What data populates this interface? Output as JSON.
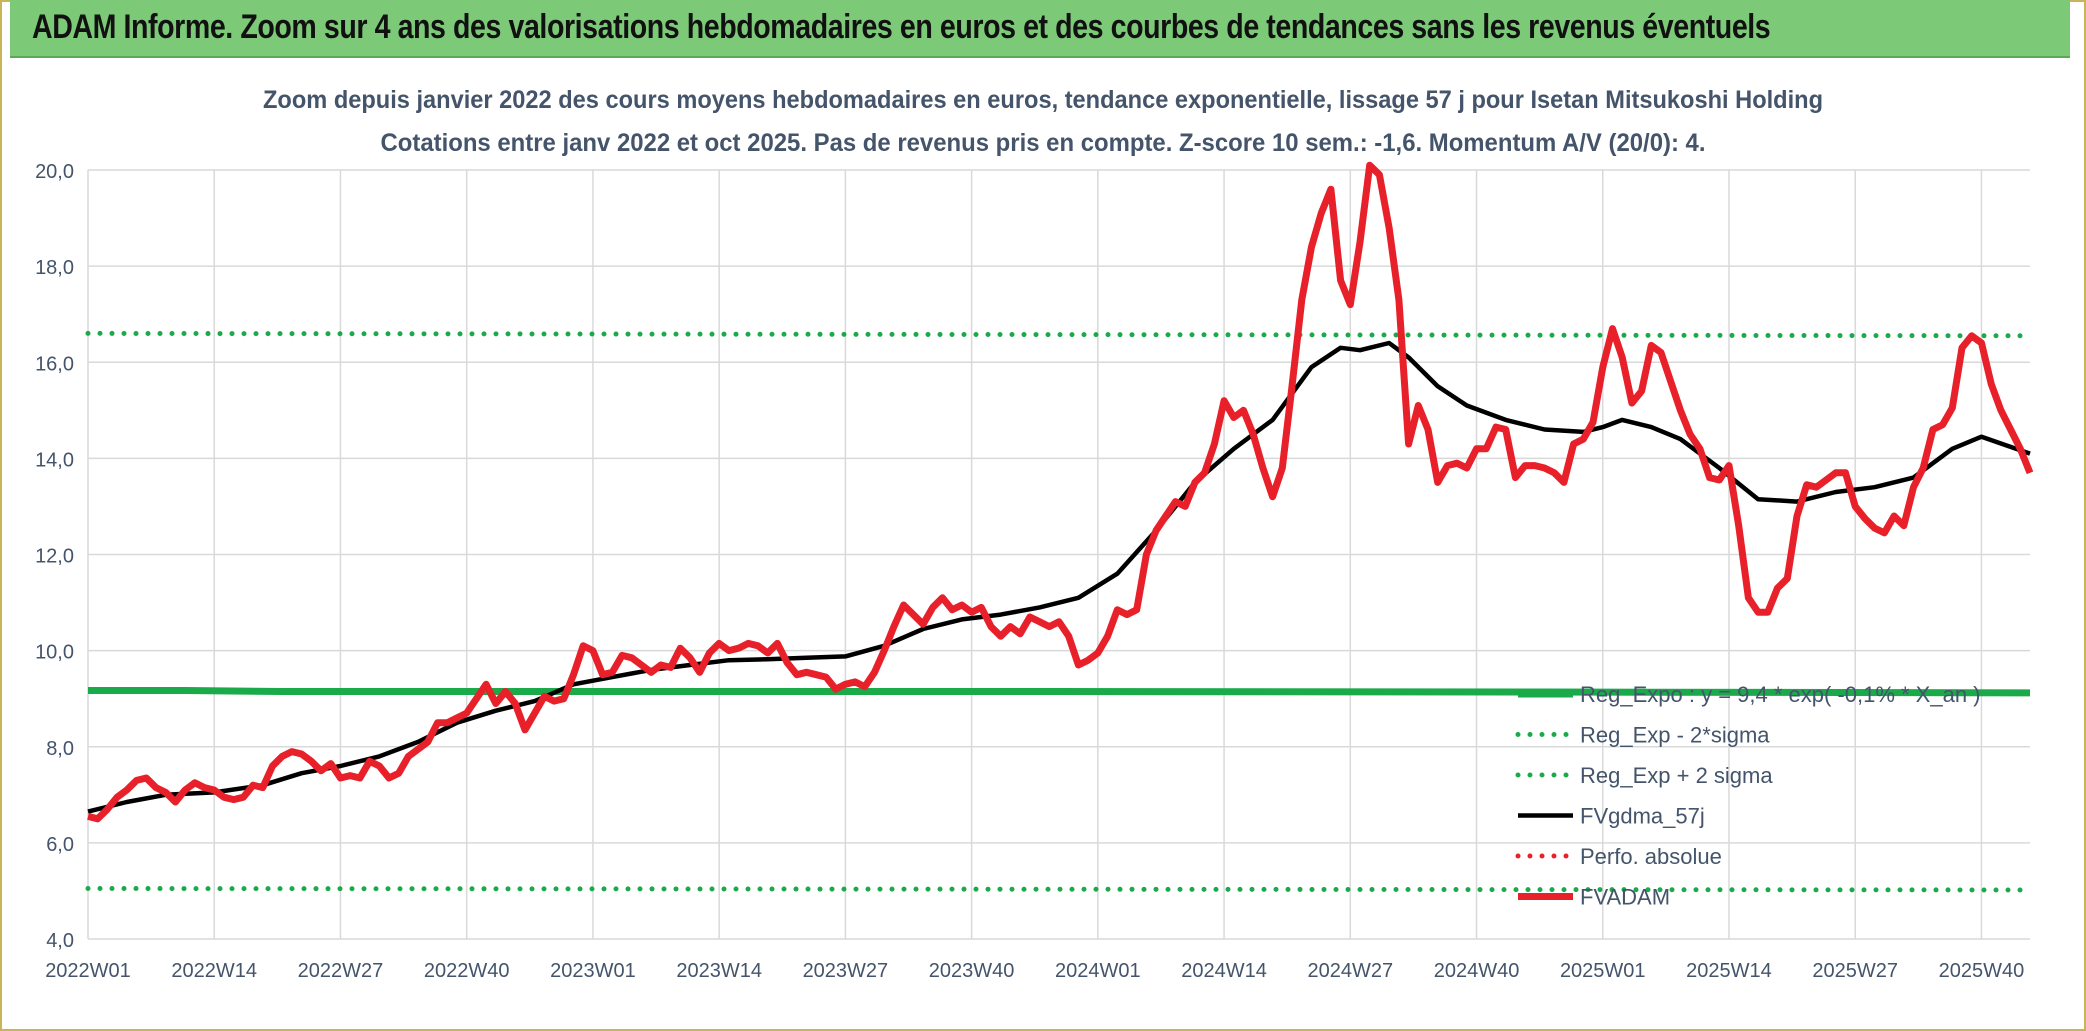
{
  "banner": {
    "text": "ADAM Informe. Zoom sur 4 ans des valorisations hebdomadaires en euros et des courbes de tendances sans les revenus éventuels"
  },
  "chart_data": {
    "type": "line",
    "title": "Zoom depuis janvier 2022 des cours moyens hebdomadaires en euros, tendance exponentielle, lissage 57 j pour Isetan Mitsukoshi Holding",
    "subtitle": "Cotations entre janv 2022 et oct 2025. Pas de revenus pris en compte. Z-score 10 sem.: -1,6. Momentum A/V (20/0): 4.",
    "xlabel": "",
    "ylabel": "",
    "ylim": [
      4,
      20
    ],
    "yticks": [
      4,
      6,
      8,
      10,
      12,
      14,
      16,
      18,
      20
    ],
    "ytick_labels": [
      "4,0",
      "6,0",
      "8,0",
      "10,0",
      "12,0",
      "14,0",
      "16,0",
      "18,0",
      "20,0"
    ],
    "x_tick_labels": [
      "2022W01",
      "2022W14",
      "2022W27",
      "2022W40",
      "2023W01",
      "2023W14",
      "2023W27",
      "2023W40",
      "2024W01",
      "2024W14",
      "2024W27",
      "2024W40",
      "2025W01",
      "2025W14",
      "2025W27",
      "2025W40"
    ],
    "x_tick_weeks": [
      0,
      13,
      26,
      39,
      52,
      65,
      78,
      91,
      104,
      117,
      130,
      143,
      156,
      169,
      182,
      195
    ],
    "x_range": [
      0,
      200
    ],
    "grid": true,
    "legend_position": "bottom-right",
    "series": [
      {
        "name": "Reg_Expo : y = 9,4 * exp( -0,1% * X_an )",
        "style": "solid-thick",
        "color": "#1aaa4a",
        "points": [
          [
            0,
            9.17
          ],
          [
            10,
            9.17
          ],
          [
            20,
            9.15
          ],
          [
            50,
            9.15
          ],
          [
            100,
            9.15
          ],
          [
            150,
            9.14
          ],
          [
            200,
            9.12
          ]
        ]
      },
      {
        "name": "Reg_Exp - 2*sigma",
        "style": "dotted",
        "color": "#1aaa4a",
        "points": [
          [
            0,
            5.05
          ],
          [
            200,
            5.02
          ]
        ]
      },
      {
        "name": "Reg_Exp + 2 sigma",
        "style": "dotted",
        "color": "#1aaa4a",
        "points": [
          [
            0,
            16.6
          ],
          [
            200,
            16.55
          ]
        ]
      },
      {
        "name": "FVgdma_57j",
        "style": "solid",
        "color": "#000000",
        "points": [
          [
            0,
            6.65
          ],
          [
            4,
            6.85
          ],
          [
            8,
            7.0
          ],
          [
            13,
            7.05
          ],
          [
            18,
            7.2
          ],
          [
            22,
            7.45
          ],
          [
            26,
            7.6
          ],
          [
            30,
            7.8
          ],
          [
            34,
            8.1
          ],
          [
            38,
            8.5
          ],
          [
            42,
            8.75
          ],
          [
            46,
            8.95
          ],
          [
            50,
            9.3
          ],
          [
            54,
            9.45
          ],
          [
            58,
            9.6
          ],
          [
            62,
            9.7
          ],
          [
            66,
            9.8
          ],
          [
            70,
            9.82
          ],
          [
            74,
            9.85
          ],
          [
            78,
            9.88
          ],
          [
            82,
            10.1
          ],
          [
            86,
            10.45
          ],
          [
            90,
            10.65
          ],
          [
            94,
            10.75
          ],
          [
            98,
            10.9
          ],
          [
            102,
            11.1
          ],
          [
            106,
            11.6
          ],
          [
            110,
            12.5
          ],
          [
            114,
            13.5
          ],
          [
            118,
            14.2
          ],
          [
            122,
            14.8
          ],
          [
            126,
            15.9
          ],
          [
            129,
            16.3
          ],
          [
            131,
            16.25
          ],
          [
            134,
            16.4
          ],
          [
            136,
            16.1
          ],
          [
            139,
            15.5
          ],
          [
            142,
            15.1
          ],
          [
            146,
            14.8
          ],
          [
            150,
            14.6
          ],
          [
            154,
            14.55
          ],
          [
            156,
            14.65
          ],
          [
            158,
            14.8
          ],
          [
            161,
            14.65
          ],
          [
            164,
            14.4
          ],
          [
            168,
            13.8
          ],
          [
            172,
            13.15
          ],
          [
            176,
            13.1
          ],
          [
            180,
            13.3
          ],
          [
            184,
            13.4
          ],
          [
            188,
            13.6
          ],
          [
            192,
            14.2
          ],
          [
            195,
            14.45
          ],
          [
            200,
            14.1
          ]
        ]
      },
      {
        "name": "Perfo. absolue",
        "style": "dotted",
        "color": "#e8202a",
        "points": []
      },
      {
        "name": "FVADAM",
        "style": "solid-thick",
        "color": "#e8202a",
        "points": [
          [
            0,
            6.55
          ],
          [
            1,
            6.5
          ],
          [
            2,
            6.7
          ],
          [
            3,
            6.95
          ],
          [
            4,
            7.1
          ],
          [
            5,
            7.3
          ],
          [
            6,
            7.35
          ],
          [
            7,
            7.15
          ],
          [
            8,
            7.05
          ],
          [
            9,
            6.85
          ],
          [
            10,
            7.1
          ],
          [
            11,
            7.25
          ],
          [
            12,
            7.15
          ],
          [
            13,
            7.1
          ],
          [
            14,
            6.95
          ],
          [
            15,
            6.9
          ],
          [
            16,
            6.95
          ],
          [
            17,
            7.2
          ],
          [
            18,
            7.15
          ],
          [
            19,
            7.6
          ],
          [
            20,
            7.8
          ],
          [
            21,
            7.9
          ],
          [
            22,
            7.85
          ],
          [
            23,
            7.7
          ],
          [
            24,
            7.5
          ],
          [
            25,
            7.65
          ],
          [
            26,
            7.35
          ],
          [
            27,
            7.4
          ],
          [
            28,
            7.35
          ],
          [
            29,
            7.7
          ],
          [
            30,
            7.6
          ],
          [
            31,
            7.35
          ],
          [
            32,
            7.45
          ],
          [
            33,
            7.8
          ],
          [
            34,
            7.95
          ],
          [
            35,
            8.1
          ],
          [
            36,
            8.5
          ],
          [
            37,
            8.5
          ],
          [
            38,
            8.6
          ],
          [
            39,
            8.7
          ],
          [
            40,
            9.0
          ],
          [
            41,
            9.3
          ],
          [
            42,
            8.9
          ],
          [
            43,
            9.15
          ],
          [
            44,
            8.9
          ],
          [
            45,
            8.35
          ],
          [
            46,
            8.7
          ],
          [
            47,
            9.05
          ],
          [
            48,
            8.95
          ],
          [
            49,
            9.0
          ],
          [
            50,
            9.5
          ],
          [
            51,
            10.1
          ],
          [
            52,
            10.0
          ],
          [
            53,
            9.5
          ],
          [
            54,
            9.55
          ],
          [
            55,
            9.9
          ],
          [
            56,
            9.85
          ],
          [
            57,
            9.7
          ],
          [
            58,
            9.55
          ],
          [
            59,
            9.7
          ],
          [
            60,
            9.65
          ],
          [
            61,
            10.05
          ],
          [
            62,
            9.85
          ],
          [
            63,
            9.55
          ],
          [
            64,
            9.95
          ],
          [
            65,
            10.15
          ],
          [
            66,
            10.0
          ],
          [
            67,
            10.05
          ],
          [
            68,
            10.15
          ],
          [
            69,
            10.1
          ],
          [
            70,
            9.95
          ],
          [
            71,
            10.15
          ],
          [
            72,
            9.75
          ],
          [
            73,
            9.5
          ],
          [
            74,
            9.55
          ],
          [
            75,
            9.5
          ],
          [
            76,
            9.45
          ],
          [
            77,
            9.2
          ],
          [
            78,
            9.3
          ],
          [
            79,
            9.35
          ],
          [
            80,
            9.25
          ],
          [
            81,
            9.55
          ],
          [
            82,
            10.0
          ],
          [
            83,
            10.5
          ],
          [
            84,
            10.95
          ],
          [
            85,
            10.75
          ],
          [
            86,
            10.55
          ],
          [
            87,
            10.9
          ],
          [
            88,
            11.1
          ],
          [
            89,
            10.85
          ],
          [
            90,
            10.95
          ],
          [
            91,
            10.8
          ],
          [
            92,
            10.9
          ],
          [
            93,
            10.5
          ],
          [
            94,
            10.3
          ],
          [
            95,
            10.5
          ],
          [
            96,
            10.35
          ],
          [
            97,
            10.7
          ],
          [
            98,
            10.6
          ],
          [
            99,
            10.5
          ],
          [
            100,
            10.6
          ],
          [
            101,
            10.3
          ],
          [
            102,
            9.7
          ],
          [
            103,
            9.8
          ],
          [
            104,
            9.95
          ],
          [
            105,
            10.3
          ],
          [
            106,
            10.85
          ],
          [
            107,
            10.75
          ],
          [
            108,
            10.85
          ],
          [
            109,
            12.0
          ],
          [
            110,
            12.5
          ],
          [
            111,
            12.8
          ],
          [
            112,
            13.1
          ],
          [
            113,
            13.0
          ],
          [
            114,
            13.5
          ],
          [
            115,
            13.7
          ],
          [
            116,
            14.3
          ],
          [
            117,
            15.2
          ],
          [
            118,
            14.85
          ],
          [
            119,
            15.0
          ],
          [
            120,
            14.5
          ],
          [
            121,
            13.8
          ],
          [
            122,
            13.2
          ],
          [
            123,
            13.8
          ],
          [
            124,
            15.5
          ],
          [
            125,
            17.3
          ],
          [
            126,
            18.4
          ],
          [
            127,
            19.1
          ],
          [
            128,
            19.6
          ],
          [
            129,
            17.7
          ],
          [
            130,
            17.2
          ],
          [
            131,
            18.5
          ],
          [
            132,
            20.1
          ],
          [
            133,
            19.9
          ],
          [
            134,
            18.8
          ],
          [
            135,
            17.3
          ],
          [
            136,
            14.3
          ],
          [
            137,
            15.1
          ],
          [
            138,
            14.6
          ],
          [
            139,
            13.5
          ],
          [
            140,
            13.85
          ],
          [
            141,
            13.9
          ],
          [
            142,
            13.8
          ],
          [
            143,
            14.2
          ],
          [
            144,
            14.2
          ],
          [
            145,
            14.65
          ],
          [
            146,
            14.6
          ],
          [
            147,
            13.6
          ],
          [
            148,
            13.85
          ],
          [
            149,
            13.85
          ],
          [
            150,
            13.8
          ],
          [
            151,
            13.7
          ],
          [
            152,
            13.5
          ],
          [
            153,
            14.3
          ],
          [
            154,
            14.4
          ],
          [
            155,
            14.75
          ],
          [
            156,
            15.9
          ],
          [
            157,
            16.7
          ],
          [
            158,
            16.1
          ],
          [
            159,
            15.15
          ],
          [
            160,
            15.4
          ],
          [
            161,
            16.35
          ],
          [
            162,
            16.2
          ],
          [
            163,
            15.6
          ],
          [
            164,
            15.0
          ],
          [
            165,
            14.5
          ],
          [
            166,
            14.2
          ],
          [
            167,
            13.6
          ],
          [
            168,
            13.55
          ],
          [
            169,
            13.85
          ],
          [
            170,
            12.6
          ],
          [
            171,
            11.1
          ],
          [
            172,
            10.8
          ],
          [
            173,
            10.8
          ],
          [
            174,
            11.3
          ],
          [
            175,
            11.5
          ],
          [
            176,
            12.8
          ],
          [
            177,
            13.45
          ],
          [
            178,
            13.4
          ],
          [
            179,
            13.55
          ],
          [
            180,
            13.7
          ],
          [
            181,
            13.7
          ],
          [
            182,
            13.0
          ],
          [
            183,
            12.75
          ],
          [
            184,
            12.55
          ],
          [
            185,
            12.45
          ],
          [
            186,
            12.8
          ],
          [
            187,
            12.6
          ],
          [
            188,
            13.4
          ],
          [
            189,
            13.8
          ],
          [
            190,
            14.6
          ],
          [
            191,
            14.7
          ],
          [
            192,
            15.05
          ],
          [
            193,
            16.3
          ],
          [
            194,
            16.55
          ],
          [
            195,
            16.4
          ],
          [
            196,
            15.55
          ],
          [
            197,
            15.0
          ],
          [
            198,
            14.6
          ],
          [
            199,
            14.2
          ],
          [
            200,
            13.7
          ]
        ]
      }
    ]
  }
}
